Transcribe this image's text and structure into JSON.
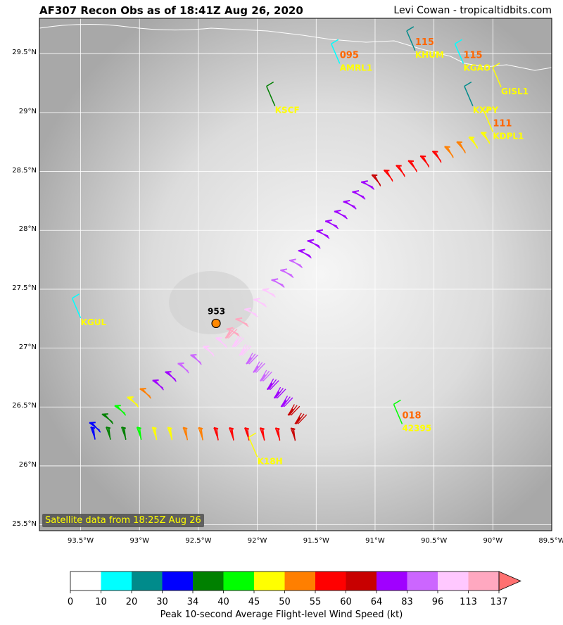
{
  "title": "AF307 Recon Obs as of 18:41Z Aug 26, 2020",
  "credit": "Levi Cowan - tropicaltidbits.com",
  "satellite_note": "Satellite data from 18:25Z Aug 26",
  "map": {
    "lon_range": [
      -93.85,
      -89.5
    ],
    "lat_range": [
      25.45,
      29.8
    ],
    "lat_ticks": [
      {
        "value": 29.5,
        "label": "29.5°N"
      },
      {
        "value": 29.0,
        "label": "29°N"
      },
      {
        "value": 28.5,
        "label": "28.5°N"
      },
      {
        "value": 28.0,
        "label": "28°N"
      },
      {
        "value": 27.5,
        "label": "27.5°N"
      },
      {
        "value": 27.0,
        "label": "27°N"
      },
      {
        "value": 26.5,
        "label": "26.5°N"
      },
      {
        "value": 26.0,
        "label": "26°N"
      },
      {
        "value": 25.5,
        "label": "25.5°N"
      }
    ],
    "lon_ticks": [
      {
        "value": -93.5,
        "label": "93.5°W"
      },
      {
        "value": -93.0,
        "label": "93°W"
      },
      {
        "value": -92.5,
        "label": "92.5°W"
      },
      {
        "value": -92.0,
        "label": "92°W"
      },
      {
        "value": -91.5,
        "label": "91.5°W"
      },
      {
        "value": -91.0,
        "label": "91°W"
      },
      {
        "value": -90.5,
        "label": "90.5°W"
      },
      {
        "value": -90.0,
        "label": "90°W"
      },
      {
        "value": -89.5,
        "label": "89.5°W"
      }
    ],
    "center": {
      "lon": -92.35,
      "lat": 27.21,
      "pressure_label": "953"
    },
    "stations": [
      {
        "id": "KGUL",
        "lon": -93.5,
        "lat": 27.22,
        "wind": "",
        "color": "#00ffff"
      },
      {
        "id": "AMRL1",
        "lon": -91.3,
        "lat": 29.38,
        "wind": "095",
        "color": "#00ffff"
      },
      {
        "id": "KSCF",
        "lon": -91.85,
        "lat": 29.02,
        "wind": "",
        "color": "#008000"
      },
      {
        "id": "KHUM",
        "lon": -90.66,
        "lat": 29.49,
        "wind": "115",
        "color": "#008b8b"
      },
      {
        "id": "KGAO",
        "lon": -90.25,
        "lat": 29.38,
        "wind": "115",
        "color": "#00ffff"
      },
      {
        "id": "GISL1",
        "lon": -89.93,
        "lat": 29.18,
        "wind": "",
        "color": "#ffff00"
      },
      {
        "id": "KXPY",
        "lon": -90.17,
        "lat": 29.02,
        "wind": "",
        "color": "#008b8b"
      },
      {
        "id": "KDPL1",
        "lon": -90.0,
        "lat": 28.8,
        "wind": "111",
        "color": "#ffff00"
      },
      {
        "id": "42395",
        "lon": -90.77,
        "lat": 26.32,
        "wind": "018",
        "color": "#00ff00"
      },
      {
        "id": "K18H",
        "lon": -92.0,
        "lat": 26.04,
        "wind": "",
        "color": "#ffff00"
      }
    ],
    "flight_legs": [
      {
        "from": [
          -93.48,
          26.33
        ],
        "to": [
          -92.3,
          27.12
        ],
        "speeds": [
          30,
          34,
          42,
          48,
          52,
          64,
          70,
          83,
          90,
          96,
          100
        ]
      },
      {
        "from": [
          -92.3,
          27.12
        ],
        "to": [
          -91.08,
          28.45
        ],
        "speeds": [
          113,
          113,
          110,
          100,
          96,
          90,
          83,
          83,
          75,
          70,
          68,
          70,
          64,
          70,
          75,
          80
        ]
      },
      {
        "from": [
          -91.08,
          28.45
        ],
        "to": [
          -90.05,
          28.85
        ],
        "speeds": [
          60,
          58,
          57,
          57,
          56,
          55,
          52,
          50,
          47,
          45
        ]
      },
      {
        "from": [
          -93.48,
          26.33
        ],
        "to": [
          -91.65,
          26.32
        ],
        "speeds": [
          30,
          35,
          38,
          42,
          45,
          47,
          50,
          52,
          55,
          56,
          57,
          58,
          59,
          60
        ]
      },
      {
        "from": [
          -91.65,
          26.32
        ],
        "to": [
          -92.3,
          27.12
        ],
        "speeds": [
          60,
          62,
          64,
          70,
          75,
          83,
          86,
          90,
          96,
          105,
          113
        ]
      }
    ]
  },
  "colorbar": {
    "label": "Peak 10-second Average Flight-level Wind Speed (kt)",
    "ticks": [
      "0",
      "10",
      "20",
      "30",
      "34",
      "40",
      "45",
      "50",
      "55",
      "60",
      "64",
      "83",
      "96",
      "113",
      "137"
    ],
    "colors": [
      "#ffffff",
      "#00ffff",
      "#008b8b",
      "#0000ff",
      "#008000",
      "#00ff00",
      "#ffff00",
      "#ff7f00",
      "#ff0000",
      "#c80000",
      "#a000ff",
      "#cc66ff",
      "#ffc8ff",
      "#ffa8c0"
    ],
    "extend_color": "#ff7070"
  }
}
